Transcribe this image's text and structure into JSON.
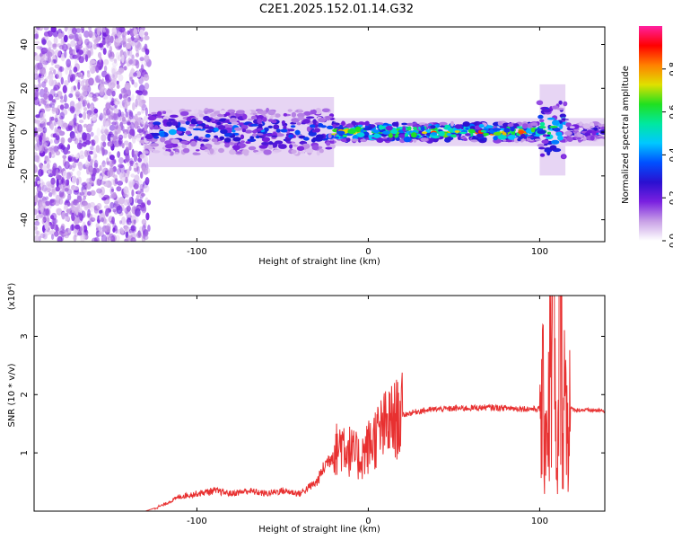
{
  "title": "C2E1.2025.152.01.14.G32",
  "chart_data": [
    {
      "type": "heatmap",
      "xlabel": "Height of straight line (km)",
      "ylabel": "Frequency (Hz)",
      "xlim": [
        -195,
        138
      ],
      "ylim": [
        -50,
        48
      ],
      "xticks": [
        -100,
        0,
        100
      ],
      "yticks": [
        -40,
        -20,
        0,
        20,
        40
      ],
      "colorbar": {
        "label": "Normalized spectral amplitude",
        "range": [
          0,
          1
        ],
        "ticks": [
          0.0,
          0.2,
          0.4,
          0.6,
          0.8
        ],
        "colors": [
          "#ffffff",
          "#c8a0e6",
          "#7a20e0",
          "#2a10d0",
          "#0050ff",
          "#00c8ff",
          "#00e8a0",
          "#20e020",
          "#e0e000",
          "#ff8000",
          "#ff0000",
          "#ff20a0"
        ]
      },
      "regions": [
        {
          "x_range": [
            -195,
            -128
          ],
          "y_range": [
            -50,
            48
          ],
          "description_level": "scattered noise",
          "peak_amplitude": 0.2
        },
        {
          "x_range": [
            -128,
            -20
          ],
          "y_range": [
            -10,
            10
          ],
          "peak_amplitude": 0.45
        },
        {
          "x_range": [
            -20,
            100
          ],
          "y_range": [
            -4,
            4
          ],
          "peak_amplitude": 0.9
        },
        {
          "x_range": [
            100,
            115
          ],
          "y_range": [
            -12,
            14
          ],
          "peak_amplitude": 0.7
        },
        {
          "x_range": [
            115,
            138
          ],
          "y_range": [
            -4,
            4
          ],
          "peak_amplitude": 0.4
        }
      ]
    },
    {
      "type": "line",
      "xlabel": "Height of straight line (km)",
      "ylabel": "SNR (10 * v/v)",
      "y_multiplier": "(x10⁴)",
      "xlim": [
        -195,
        138
      ],
      "ylim": [
        0,
        3.7
      ],
      "xticks": [
        -100,
        0,
        100
      ],
      "yticks": [
        1,
        2,
        3
      ],
      "color": "#e83030",
      "series": [
        {
          "x": [
            -195,
            -130,
            -120,
            -110,
            -100,
            -90,
            -80,
            -70,
            -60,
            -50,
            -40,
            -30,
            -25,
            -20,
            -15,
            -10,
            -5,
            0,
            5,
            10,
            15,
            20,
            30,
            40,
            50,
            60,
            70,
            80,
            90,
            100,
            105,
            108,
            110,
            112,
            115,
            120,
            130,
            138
          ],
          "values": [
            0.0,
            0.0,
            0.1,
            0.25,
            0.3,
            0.35,
            0.3,
            0.35,
            0.3,
            0.35,
            0.3,
            0.5,
            0.8,
            1.0,
            1.2,
            1.0,
            0.9,
            1.1,
            1.3,
            1.45,
            1.55,
            1.65,
            1.72,
            1.75,
            1.76,
            1.77,
            1.78,
            1.77,
            1.76,
            1.75,
            1.6,
            3.7,
            0.2,
            3.5,
            1.8,
            1.74,
            1.73,
            1.72
          ]
        }
      ]
    }
  ]
}
